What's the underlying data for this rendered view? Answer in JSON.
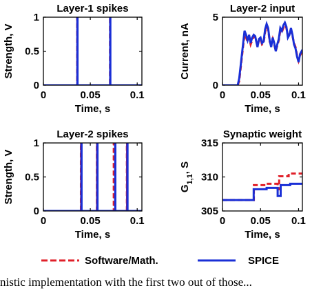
{
  "chart_data": [
    {
      "type": "line",
      "title": "Layer-1 spikes",
      "xlabel": "Time, s",
      "ylabel": "Strength, V",
      "xlim": [
        0,
        0.105
      ],
      "ylim": [
        0,
        1
      ],
      "xticks": [
        0,
        0.05,
        0.1
      ],
      "xtick_labels": [
        "0",
        "0.05",
        "0.1"
      ],
      "yticks": [
        0,
        0.5,
        1
      ],
      "ytick_labels": [
        "0",
        "0.5",
        "1"
      ],
      "grid": false,
      "series": [
        {
          "name": "Software/Math.",
          "style": "dashed",
          "color": "#e0202a",
          "x": [
            0,
            0.036,
            0.036,
            0.0362,
            0.0362,
            0.071,
            0.071,
            0.0712,
            0.0712,
            0.105
          ],
          "y": [
            0,
            0,
            1,
            1,
            0,
            0,
            1,
            1,
            0,
            0
          ]
        },
        {
          "name": "SPICE",
          "style": "solid",
          "color": "#1a2fd6",
          "x": [
            0,
            0.0362,
            0.0362,
            0.0364,
            0.0364,
            0.0712,
            0.0712,
            0.0714,
            0.0714,
            0.105
          ],
          "y": [
            0,
            0,
            1,
            1,
            0,
            0,
            1,
            1,
            0,
            0
          ]
        }
      ]
    },
    {
      "type": "line",
      "title": "Layer-2 input",
      "xlabel": "Time, s",
      "ylabel": "Current, nA",
      "xlim": [
        0,
        0.105
      ],
      "ylim": [
        0,
        5
      ],
      "xticks": [
        0,
        0.05,
        0.1
      ],
      "xtick_labels": [
        "0",
        "0.05",
        "0.1"
      ],
      "yticks": [
        0,
        5
      ],
      "ytick_labels": [
        "0",
        "5"
      ],
      "grid": false,
      "series": [
        {
          "name": "Software/Math.",
          "style": "dashed",
          "color": "#e0202a",
          "x": [
            0,
            0.02,
            0.022,
            0.025,
            0.027,
            0.029,
            0.031,
            0.033,
            0.035,
            0.037,
            0.039,
            0.041,
            0.043,
            0.046,
            0.048,
            0.05,
            0.052,
            0.054,
            0.056,
            0.058,
            0.06,
            0.062,
            0.064,
            0.066,
            0.068,
            0.07,
            0.072,
            0.074,
            0.076,
            0.078,
            0.08,
            0.082,
            0.084,
            0.086,
            0.088,
            0.09,
            0.092,
            0.094,
            0.096,
            0.098,
            0.1,
            0.102,
            0.105
          ],
          "y": [
            0,
            0,
            0.3,
            1.8,
            2.8,
            3.7,
            3.5,
            3.2,
            3.5,
            3.0,
            3.3,
            3.6,
            3.5,
            2.9,
            3.3,
            3.4,
            3.0,
            3.1,
            3.9,
            4.3,
            4.1,
            3.2,
            3.0,
            3.4,
            3.0,
            2.5,
            2.9,
            3.3,
            4.0,
            3.9,
            4.2,
            4.4,
            4.2,
            3.6,
            3.8,
            4.0,
            3.6,
            3.1,
            2.8,
            2.2,
            1.8,
            2.2,
            2.5
          ]
        },
        {
          "name": "SPICE",
          "style": "solid",
          "color": "#1a2fd6",
          "x": [
            0,
            0.02,
            0.022,
            0.025,
            0.027,
            0.029,
            0.031,
            0.033,
            0.035,
            0.037,
            0.039,
            0.041,
            0.043,
            0.046,
            0.048,
            0.05,
            0.052,
            0.054,
            0.056,
            0.058,
            0.06,
            0.062,
            0.064,
            0.066,
            0.068,
            0.07,
            0.072,
            0.074,
            0.076,
            0.078,
            0.08,
            0.082,
            0.084,
            0.086,
            0.088,
            0.09,
            0.092,
            0.094,
            0.096,
            0.098,
            0.1,
            0.102,
            0.105
          ],
          "y": [
            0,
            0,
            0.5,
            2.0,
            3.0,
            4.0,
            3.7,
            3.3,
            3.7,
            3.1,
            3.5,
            3.7,
            3.6,
            2.8,
            3.4,
            3.5,
            3.1,
            3.2,
            4.1,
            4.5,
            4.2,
            3.3,
            2.8,
            3.5,
            3.1,
            2.5,
            3.0,
            3.4,
            4.2,
            4.0,
            4.4,
            4.6,
            4.3,
            3.5,
            3.7,
            4.2,
            3.7,
            3.0,
            2.7,
            2.1,
            1.7,
            2.3,
            2.6
          ]
        }
      ]
    },
    {
      "type": "line",
      "title": "Layer-2 spikes",
      "xlabel": "Time, s",
      "ylabel": "Strength, V",
      "xlim": [
        0,
        0.105
      ],
      "ylim": [
        0,
        1
      ],
      "xticks": [
        0,
        0.05,
        0.1
      ],
      "xtick_labels": [
        "0",
        "0.05",
        "0.1"
      ],
      "yticks": [
        0,
        0.5,
        1
      ],
      "ytick_labels": [
        "0",
        "0.5",
        "1"
      ],
      "grid": false,
      "series": [
        {
          "name": "Software/Math.",
          "style": "dashed",
          "color": "#e0202a",
          "x": [
            0,
            0.04,
            0.04,
            0.0402,
            0.0402,
            0.057,
            0.057,
            0.0572,
            0.0572,
            0.075,
            0.075,
            0.0752,
            0.0752,
            0.089,
            0.089,
            0.0892,
            0.0892,
            0.105
          ],
          "y": [
            0,
            0,
            1,
            1,
            0,
            0,
            1,
            1,
            0,
            0,
            1,
            1,
            0,
            0,
            1,
            1,
            0,
            0
          ]
        },
        {
          "name": "SPICE",
          "style": "solid",
          "color": "#1a2fd6",
          "x": [
            0,
            0.0405,
            0.0405,
            0.0407,
            0.0407,
            0.0575,
            0.0575,
            0.0577,
            0.0577,
            0.0765,
            0.0765,
            0.0767,
            0.0767,
            0.0895,
            0.0895,
            0.0897,
            0.0897,
            0.105
          ],
          "y": [
            0,
            0,
            1,
            1,
            0,
            0,
            1,
            1,
            0,
            0,
            1,
            1,
            0,
            0,
            1,
            1,
            0,
            0
          ]
        }
      ]
    },
    {
      "type": "line",
      "title": "Synaptic weight",
      "xlabel": "Time, s",
      "ylabel": "G1,1, S",
      "ylabel_parts": {
        "main": "G",
        "sub": "1,1",
        "suffix": ", S"
      },
      "xlim": [
        0,
        0.105
      ],
      "ylim": [
        305,
        315
      ],
      "xticks": [
        0,
        0.05,
        0.1
      ],
      "xtick_labels": [
        "0",
        "0.05",
        "0.1"
      ],
      "yticks": [
        305,
        310,
        315
      ],
      "ytick_labels": [
        "305",
        "310",
        "315"
      ],
      "grid": false,
      "series": [
        {
          "name": "Software/Math.",
          "style": "dashed",
          "color": "#e0202a",
          "x": [
            0,
            0.041,
            0.041,
            0.04125,
            0.04125,
            0.058,
            0.058,
            0.0725,
            0.0725,
            0.0745,
            0.0745,
            0.087,
            0.087,
            0.105
          ],
          "y": [
            306.6,
            306.6,
            306.6,
            306.6,
            308.8,
            308.8,
            309.0,
            309.0,
            308.2,
            308.2,
            310.1,
            310.1,
            310.5,
            310.5
          ]
        },
        {
          "name": "SPICE",
          "style": "solid",
          "color": "#1a2fd6",
          "x": [
            0,
            0.041,
            0.041,
            0.058,
            0.058,
            0.0725,
            0.0725,
            0.0765,
            0.0765,
            0.089,
            0.089,
            0.105
          ],
          "y": [
            306.6,
            306.6,
            308.2,
            308.2,
            308.4,
            308.4,
            307.2,
            307.2,
            308.8,
            308.8,
            309.0,
            309.0
          ]
        }
      ]
    }
  ],
  "legend": {
    "placement": "bottom",
    "items": [
      {
        "label": "Software/Math.",
        "style": "dashed",
        "color": "#e0202a"
      },
      {
        "label": "SPICE",
        "style": "solid",
        "color": "#1a2fd6"
      }
    ]
  },
  "caption": "nistic implementation with the first two out of those..."
}
